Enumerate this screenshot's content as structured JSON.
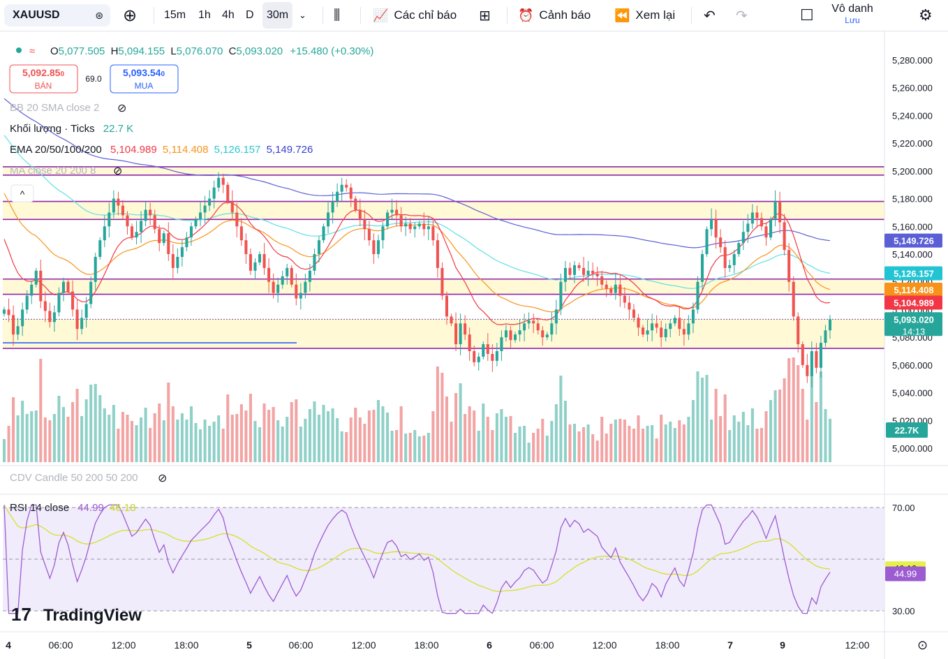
{
  "toolbar": {
    "symbol": "XAUUSD",
    "timeframes": [
      "15m",
      "1h",
      "4h",
      "D",
      "30m"
    ],
    "active_timeframe": "30m",
    "indicators_label": "Các chỉ báo",
    "alerts_label": "Cảnh báo",
    "replay_label": "Xem lại",
    "user_name": "Vô danh",
    "save_label": "Lưu",
    "icons": [
      "add-icon",
      "chevron-down-icon",
      "candles-icon",
      "indicators-icon",
      "layout-icon",
      "alert-icon",
      "replay-icon",
      "undo-icon",
      "redo-icon",
      "fullscreen-icon",
      "settings-icon"
    ]
  },
  "legend": {
    "ohlc": {
      "o_label": "O",
      "o": "5,077.505",
      "h_label": "H",
      "h": "5,094.155",
      "l_label": "L",
      "l": "5,076.070",
      "c_label": "C",
      "c": "5,093.020",
      "change": "+15.480 (+0.30%)"
    },
    "sell": {
      "price": "5,092.85",
      "suffix": "0",
      "label": "BÁN"
    },
    "spread": "69.0",
    "buy": {
      "price": "5,093.54",
      "suffix": "0",
      "label": "MUA"
    },
    "bb": "BB 20 SMA close 2",
    "volume_name": "Khối lượng · Ticks",
    "volume_value": "22.7 K",
    "ema_name": "EMA 20/50/100/200",
    "ema_values": [
      "5,104.989",
      "5,114.408",
      "5,126.157",
      "5,149.726"
    ],
    "ma": "MA close 20 200 8",
    "cdv": "CDV Candle 50 200 50 200",
    "rsi_name": "RSI 14 close",
    "rsi_value": "44.99",
    "rsi_ma_value": "46.18"
  },
  "colors": {
    "up": "#26a69a",
    "down": "#ef5350",
    "vol_up": "#8fd0c8",
    "vol_down": "#f3a3a3",
    "ema20": "#f23645",
    "ema50": "#f7931a",
    "ema100": "#5ce0e6",
    "ema200": "#5b5fd6",
    "zone_fill": "#fff9d6",
    "zone_line": "#8e24aa",
    "rsi_line": "#9c5bd1",
    "rsi_ma": "#d4e02a",
    "rsi_band": "#f1ecfb",
    "last_price": "#26a69a"
  },
  "chart_data": [
    {
      "type": "candlestick",
      "title": "XAUUSD 30m",
      "ylim": [
        4990,
        5290
      ],
      "y_ticks": [
        "5,000.000",
        "5,020.000",
        "5,040.000",
        "5,060.000",
        "5,080.000",
        "5,100.000",
        "5,120.000",
        "5,140.000",
        "5,160.000",
        "5,180.000",
        "5,200.000",
        "5,220.000",
        "5,240.000",
        "5,260.000",
        "5,280.000"
      ],
      "x_ticks": [
        "4",
        "06:00",
        "12:00",
        "18:00",
        "5",
        "06:00",
        "12:00",
        "18:00",
        "6",
        "06:00",
        "12:00",
        "18:00",
        "7",
        "9",
        "12:00"
      ],
      "closes": [
        5100,
        5096,
        5082,
        5088,
        5100,
        5110,
        5118,
        5128,
        5106,
        5099,
        5091,
        5098,
        5112,
        5120,
        5113,
        5100,
        5086,
        5094,
        5104,
        5120,
        5138,
        5150,
        5160,
        5170,
        5180,
        5175,
        5168,
        5160,
        5152,
        5156,
        5164,
        5172,
        5168,
        5158,
        5148,
        5155,
        5140,
        5130,
        5138,
        5145,
        5152,
        5160,
        5165,
        5170,
        5175,
        5180,
        5188,
        5195,
        5190,
        5178,
        5170,
        5160,
        5150,
        5140,
        5128,
        5134,
        5140,
        5130,
        5120,
        5112,
        5118,
        5124,
        5130,
        5118,
        5108,
        5112,
        5120,
        5128,
        5140,
        5150,
        5160,
        5170,
        5178,
        5185,
        5190,
        5188,
        5180,
        5172,
        5165,
        5158,
        5150,
        5140,
        5150,
        5160,
        5170,
        5172,
        5168,
        5160,
        5162,
        5158,
        5160,
        5162,
        5158,
        5160,
        5150,
        5130,
        5110,
        5095,
        5090,
        5075,
        5090,
        5082,
        5070,
        5062,
        5066,
        5075,
        5068,
        5063,
        5070,
        5080,
        5085,
        5078,
        5082,
        5085,
        5090,
        5092,
        5090,
        5085,
        5080,
        5082,
        5090,
        5100,
        5120,
        5130,
        5125,
        5132,
        5130,
        5125,
        5128,
        5126,
        5124,
        5118,
        5115,
        5112,
        5118,
        5110,
        5105,
        5100,
        5094,
        5087,
        5082,
        5085,
        5090,
        5087,
        5080,
        5086,
        5090,
        5094,
        5086,
        5082,
        5090,
        5100,
        5120,
        5140,
        5158,
        5165,
        5152,
        5145,
        5130,
        5132,
        5140,
        5148,
        5156,
        5162,
        5170,
        5166,
        5160,
        5152,
        5165,
        5178,
        5163,
        5143,
        5120,
        5095,
        5075,
        5060,
        5052,
        5070,
        5058,
        5076,
        5085,
        5093.02
      ],
      "volume_ticks": [
        22.7
      ],
      "volume_last": "22.7K",
      "horizontal_levels": [
        5203,
        5197,
        5178,
        5165,
        5122,
        5111,
        5093,
        5072
      ],
      "zones": [
        [
          5197,
          5203
        ],
        [
          5165,
          5178
        ],
        [
          5111,
          5122
        ],
        [
          5072,
          5093
        ]
      ],
      "support_line": 5076,
      "ema": {
        "ema20": {
          "name": "EMA 20",
          "last": 5104.989
        },
        "ema50": {
          "name": "EMA 50",
          "last": 5114.408
        },
        "ema100": {
          "name": "EMA 100",
          "last": 5126.157
        },
        "ema200": {
          "name": "EMA 200",
          "last": 5149.726
        }
      },
      "price_labels": [
        "5,149.726",
        "5,126.157",
        "5,114.408",
        "5,104.989",
        "5,093.020"
      ],
      "countdown": "14:13"
    },
    {
      "type": "line",
      "title": "RSI 14 close",
      "ylim": [
        28,
        72
      ],
      "y_ticks": [
        "70.00",
        "30.00"
      ],
      "levels": [
        70,
        50,
        30
      ],
      "rsi_last": 44.99,
      "rsi_ma_last": 46.18,
      "rsi_label": "44.99",
      "rsi_ma_label": "46.18"
    }
  ],
  "branding": "TradingView"
}
